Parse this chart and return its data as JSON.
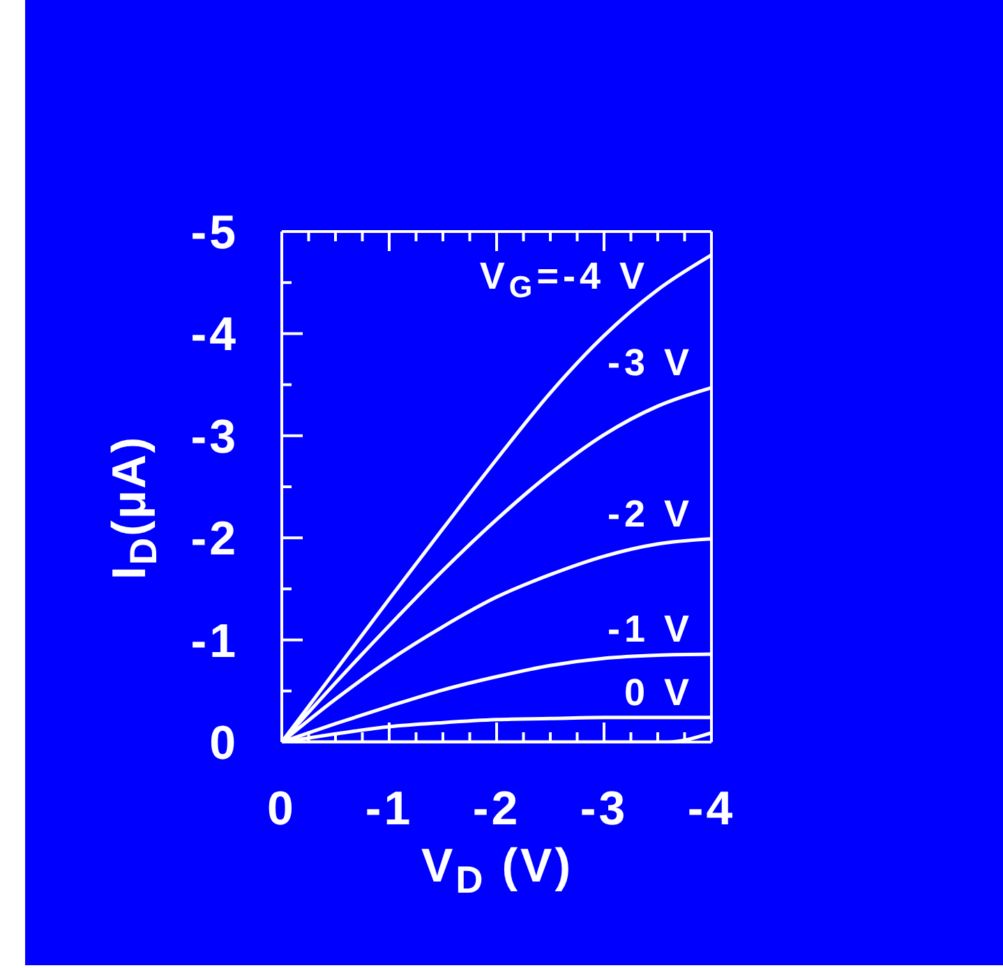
{
  "chart_data": {
    "type": "line",
    "xlabel": "V$_{D}$ (V)",
    "ylabel": "I$_{D}$(μA)",
    "x": [
      0,
      -0.5,
      -1,
      -1.5,
      -2,
      -2.5,
      -3,
      -3.5,
      -4
    ],
    "series": [
      {
        "name": "V$_{G}$=-4 V",
        "color": "#ffffff",
        "values": [
          0,
          -0.7,
          -1.4,
          -2.09,
          -2.77,
          -3.42,
          -3.98,
          -4.43,
          -4.77
        ]
      },
      {
        "name": "-3 V",
        "color": "#ffffff",
        "values": [
          0,
          -0.58,
          -1.14,
          -1.68,
          -2.18,
          -2.63,
          -3.01,
          -3.29,
          -3.47
        ]
      },
      {
        "name": "-2 V",
        "color": "#ffffff",
        "values": [
          0,
          -0.42,
          -0.8,
          -1.13,
          -1.42,
          -1.64,
          -1.82,
          -1.94,
          -1.99
        ]
      },
      {
        "name": "-1 V",
        "color": "#ffffff",
        "values": [
          0,
          -0.18,
          -0.35,
          -0.51,
          -0.64,
          -0.75,
          -0.82,
          -0.85,
          -0.86
        ]
      },
      {
        "name": "0 V",
        "color": "#ffffff",
        "values": [
          0,
          -0.08,
          -0.15,
          -0.19,
          -0.22,
          -0.23,
          -0.24,
          -0.24,
          -0.24
        ]
      },
      {
        "color": "#ffffff",
        "x": [
          0,
          -1,
          -2,
          -3,
          -3.6,
          -3.8,
          -4
        ],
        "values": [
          0,
          0,
          0,
          0,
          0,
          -0.03,
          -0.09
        ]
      }
    ],
    "xlim": [
      0,
      -4
    ],
    "xticks": [
      0,
      {
        "value": -0.25,
        "label": null
      },
      {
        "value": -0.5,
        "label": null
      },
      {
        "value": -0.75,
        "label": null
      },
      -1,
      {
        "value": -1.25,
        "label": null
      },
      {
        "value": -1.5,
        "label": null
      },
      {
        "value": -1.75,
        "label": null
      },
      -2,
      {
        "value": -2.25,
        "label": null
      },
      {
        "value": -2.5,
        "label": null
      },
      {
        "value": -2.75,
        "label": null
      },
      -3,
      {
        "value": -3.25,
        "label": null
      },
      {
        "value": -3.5,
        "label": null
      },
      {
        "value": -3.75,
        "label": null
      },
      -4
    ],
    "ylim": [
      0,
      -5
    ],
    "yticks": [
      0,
      {
        "value": -0.5,
        "label": null
      },
      -1,
      {
        "value": -1.5,
        "label": null
      },
      -2,
      {
        "value": -2.5,
        "label": null
      },
      -3,
      {
        "value": -3.5,
        "label": null
      },
      -4,
      {
        "value": -4.5,
        "label": null
      },
      -5
    ]
  }
}
